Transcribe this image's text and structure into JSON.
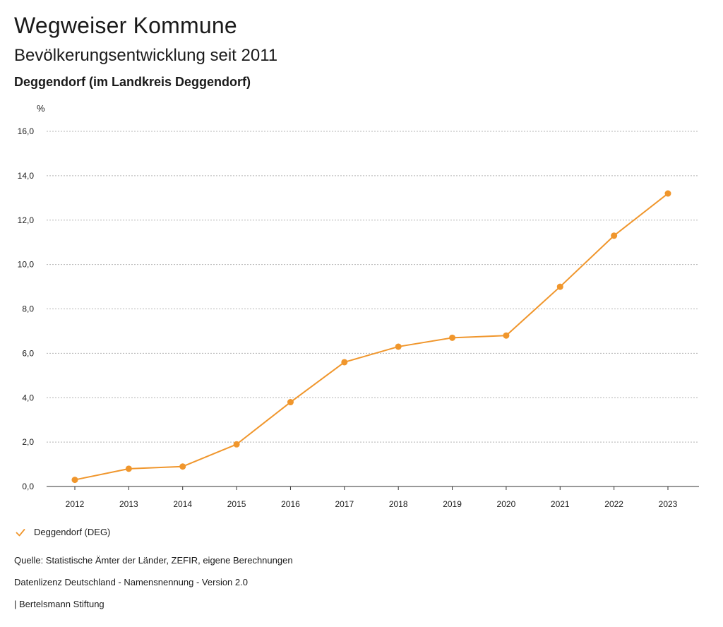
{
  "header": {
    "title": "Wegweiser Kommune",
    "subtitle": "Bevölkerungsentwicklung seit 2011",
    "region": "Deggendorf (im Landkreis Deggendorf)"
  },
  "footer": {
    "source": "Quelle: Statistische Ämter der Länder, ZEFIR, eigene Berechnungen",
    "license": "Datenlizenz Deutschland - Namensnennung - Version 2.0",
    "publisher": "| Bertelsmann Stiftung"
  },
  "colors": {
    "series": "#f0962c",
    "grid": "#b4b4b4",
    "axis": "#333333"
  },
  "legend": {
    "placement": "bottom-left",
    "icon": "check-icon",
    "label": "Deggendorf (DEG)"
  },
  "chart_data": {
    "type": "line",
    "title": "",
    "xlabel": "",
    "ylabel": "%",
    "ylim": [
      0,
      16
    ],
    "grid": true,
    "y_ticks": [
      "0,0",
      "2,0",
      "4,0",
      "6,0",
      "8,0",
      "10,0",
      "12,0",
      "14,0",
      "16,0"
    ],
    "categories": [
      "2012",
      "2013",
      "2014",
      "2015",
      "2016",
      "2017",
      "2018",
      "2019",
      "2020",
      "2021",
      "2022",
      "2023"
    ],
    "series": [
      {
        "name": "Deggendorf (DEG)",
        "values": [
          0.3,
          0.8,
          0.9,
          1.9,
          3.8,
          5.6,
          6.3,
          6.7,
          6.8,
          9.0,
          11.3,
          13.2
        ]
      }
    ]
  }
}
